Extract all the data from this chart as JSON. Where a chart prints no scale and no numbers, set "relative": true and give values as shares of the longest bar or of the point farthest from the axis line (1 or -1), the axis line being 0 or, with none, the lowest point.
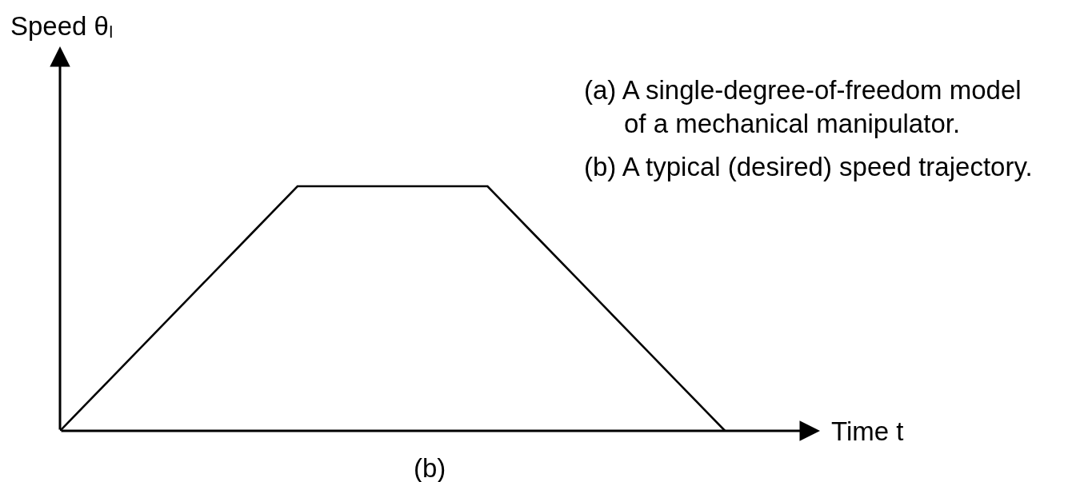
{
  "chart_data": {
    "type": "line",
    "relative": true,
    "categories": [
      null,
      null,
      null,
      null,
      null,
      null,
      null,
      null,
      null,
      null,
      null,
      null,
      null,
      null,
      null
    ],
    "series": [
      {
        "color": "#000000",
        "values": [
          0,
          0.2,
          0.4,
          0.6,
          0.8,
          1,
          1,
          1,
          1,
          1,
          0.8,
          0.6,
          0.4,
          0.2,
          0
        ]
      }
    ],
    "xlabel": "Time t",
    "annotations": [
      "Speed θₗ",
      "(a) A single-degree-of-freedom model\nof a mechanical manipulator.",
      "(b) A typical (desired) speed trajectory.",
      "(b)"
    ],
    "marker": "none",
    "line_style": "solid"
  }
}
